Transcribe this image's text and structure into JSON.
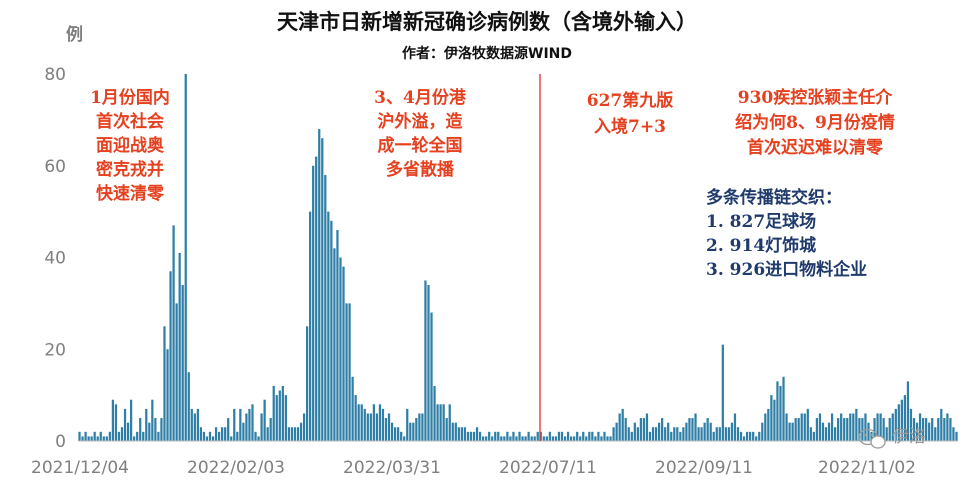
{
  "chart_data": {
    "type": "bar",
    "title": "天津市日新增新冠确诊病例数（含境外输入）",
    "subtitle": "作者：伊洛牧数据源WIND",
    "ylabel": "例",
    "ylim": [
      0,
      80
    ],
    "yticks": [
      "0",
      "20",
      "40",
      "60",
      "80"
    ],
    "xticks": [
      "2021/12/04",
      "2022/02/03",
      "2022/03/31",
      "2022/07/11",
      "2022/09/11",
      "2022/11/02"
    ],
    "bar_color": "#2e7ea6",
    "marker_color": "#e03030",
    "grid": false,
    "values": [
      2,
      1,
      2,
      1,
      1,
      2,
      1,
      2,
      1,
      1,
      2,
      9,
      8,
      2,
      3,
      7,
      4,
      9,
      1,
      2,
      5,
      2,
      7,
      4,
      9,
      5,
      2,
      5,
      25,
      20,
      37,
      47,
      30,
      41,
      34,
      80,
      15,
      7,
      6,
      7,
      3,
      2,
      1,
      2,
      1,
      3,
      2,
      3,
      3,
      5,
      1,
      7,
      2,
      7,
      4,
      6,
      7,
      8,
      2,
      1,
      6,
      9,
      3,
      5,
      12,
      10,
      11,
      12,
      10,
      3,
      3,
      3,
      3,
      4,
      6,
      25,
      50,
      60,
      62,
      68,
      66,
      58,
      50,
      48,
      42,
      46,
      40,
      38,
      30,
      30,
      14,
      10,
      8,
      8,
      7,
      6,
      6,
      8,
      6,
      8,
      7,
      5,
      6,
      4,
      3,
      3,
      2,
      1,
      7,
      4,
      4,
      5,
      6,
      6,
      35,
      34,
      28,
      12,
      8,
      8,
      8,
      5,
      8,
      4,
      4,
      3,
      3,
      3,
      2,
      2,
      2,
      3,
      2,
      1,
      1,
      2,
      1,
      2,
      2,
      1,
      1,
      2,
      1,
      2,
      1,
      2,
      1,
      1,
      2,
      1,
      1,
      2,
      2,
      1,
      1,
      2,
      1,
      1,
      2,
      2,
      1,
      2,
      1,
      1,
      2,
      1,
      2,
      1,
      2,
      2,
      1,
      2,
      1,
      2,
      1,
      1,
      3,
      4,
      6,
      7,
      5,
      3,
      2,
      4,
      3,
      5,
      5,
      6,
      2,
      3,
      3,
      4,
      5,
      3,
      4,
      2,
      3,
      3,
      2,
      3,
      4,
      5,
      5,
      6,
      3,
      3,
      4,
      5,
      4,
      2,
      3,
      3,
      21,
      3,
      3,
      4,
      6,
      3,
      2,
      1,
      2,
      2,
      2,
      1,
      2,
      4,
      6,
      7,
      10,
      9,
      13,
      12,
      14,
      6,
      4,
      4,
      5,
      5,
      6,
      6,
      7,
      3,
      2,
      5,
      6,
      4,
      3,
      4,
      6,
      3,
      5,
      6,
      5,
      5,
      6,
      6,
      7,
      5,
      5,
      6,
      4,
      2,
      5,
      6,
      6,
      5,
      3,
      5,
      6,
      7,
      8,
      9,
      10,
      13,
      7,
      5,
      4,
      6,
      5,
      5,
      4,
      5,
      3,
      5,
      7,
      5,
      6,
      5,
      3,
      2
    ],
    "annotations": [
      {
        "lines": [
          "1月份国内",
          "首次社会",
          "面迎战奥",
          "密克戎并",
          "快速清零"
        ],
        "color": "red"
      },
      {
        "lines": [
          "3、4月份港",
          "沪外溢，造",
          "成一轮全国",
          "多省散播"
        ],
        "color": "red"
      },
      {
        "lines": [
          "627第九版",
          "入境7+3"
        ],
        "color": "red"
      },
      {
        "lines": [
          "930疾控张颖主任介",
          "绍为何8、9月份疫情",
          "首次迟迟难以清零"
        ],
        "color": "red"
      },
      {
        "lines": [
          "多条传播链交织：",
          "1. 827足球场",
          "2. 914灯饰城",
          "3. 926进口物料企业"
        ],
        "color": "blue"
      }
    ]
  },
  "watermark": {
    "icon": "wechat-icon",
    "text": "伊洛"
  }
}
